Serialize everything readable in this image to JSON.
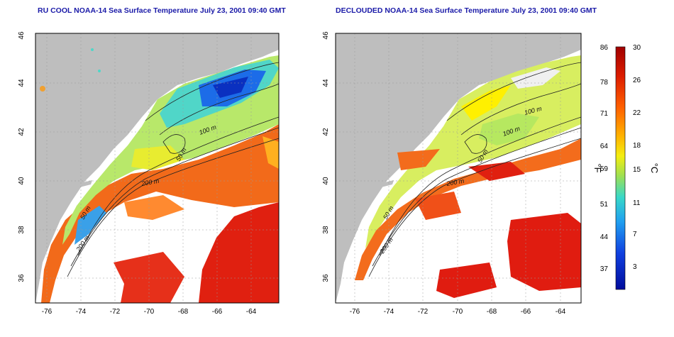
{
  "left_panel": {
    "title": "RU COOL NOAA-14 Sea Surface Temperature July 23, 2001 09:40 GMT",
    "contours": [
      "100 m",
      "50 m",
      "200 m",
      "50 m",
      "200 m"
    ]
  },
  "right_panel": {
    "title": "DECLOUDED NOAA-14 Sea Surface Temperature July 23, 2001 09:40 GMT",
    "contours": [
      "100 m",
      "100 m",
      "50 m",
      "200 m",
      "50 m",
      "200 m"
    ]
  },
  "axes": {
    "x_ticks": [
      "-76",
      "-74",
      "-72",
      "-70",
      "-68",
      "-66",
      "-64"
    ],
    "y_ticks": [
      "46",
      "44",
      "42",
      "40",
      "38",
      "36"
    ]
  },
  "colorbar": {
    "f_label": "°F",
    "c_label": "°C",
    "f_ticks": [
      "86",
      "78",
      "71",
      "64",
      "59",
      "51",
      "44",
      "37"
    ],
    "c_ticks": [
      "30",
      "26",
      "22",
      "18",
      "15",
      "11",
      "7",
      "3"
    ],
    "colors": [
      "#b00000",
      "#e02000",
      "#ff6a00",
      "#ffb000",
      "#fff000",
      "#a8e64a",
      "#40d8c0",
      "#20a8f0",
      "#1050e0",
      "#0010a8"
    ]
  }
}
